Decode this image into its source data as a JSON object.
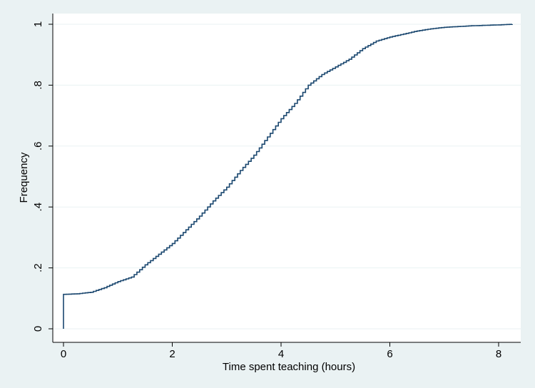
{
  "chart_data": {
    "type": "line",
    "step": true,
    "title": "",
    "xlabel": "Time spent teaching (hours)",
    "ylabel": "Frequency",
    "xlim": [
      0,
      8.25
    ],
    "ylim": [
      0,
      1
    ],
    "xticks": [
      0,
      2,
      4,
      6,
      8
    ],
    "xtick_labels": [
      "0",
      "2",
      "4",
      "6",
      "8"
    ],
    "yticks": [
      0,
      0.2,
      0.4,
      0.6,
      0.8,
      1
    ],
    "ytick_labels": [
      "0",
      ".2",
      ".4",
      ".6",
      ".8",
      "1"
    ],
    "grid": true,
    "colors": {
      "outer_background": "#eaf2f3",
      "plot_background": "#ffffff",
      "grid": "#eaf2f3",
      "line": "#1a476f"
    },
    "series": [
      {
        "x": [
          0,
          0,
          0.25,
          0.5,
          0.75,
          1.0,
          1.25,
          1.5,
          1.75,
          2.0,
          2.25,
          2.5,
          2.75,
          3.0,
          3.25,
          3.5,
          3.75,
          4.0,
          4.25,
          4.5,
          4.75,
          5.0,
          5.25,
          5.5,
          5.75,
          6.0,
          6.25,
          6.5,
          6.75,
          7.0,
          7.5,
          8.0,
          8.25
        ],
        "y": [
          0,
          0.113,
          0.115,
          0.12,
          0.135,
          0.155,
          0.17,
          0.21,
          0.245,
          0.28,
          0.325,
          0.37,
          0.42,
          0.465,
          0.52,
          0.57,
          0.63,
          0.69,
          0.74,
          0.8,
          0.835,
          0.86,
          0.885,
          0.92,
          0.945,
          0.958,
          0.968,
          0.978,
          0.985,
          0.99,
          0.995,
          0.998,
          1.0
        ]
      }
    ]
  }
}
